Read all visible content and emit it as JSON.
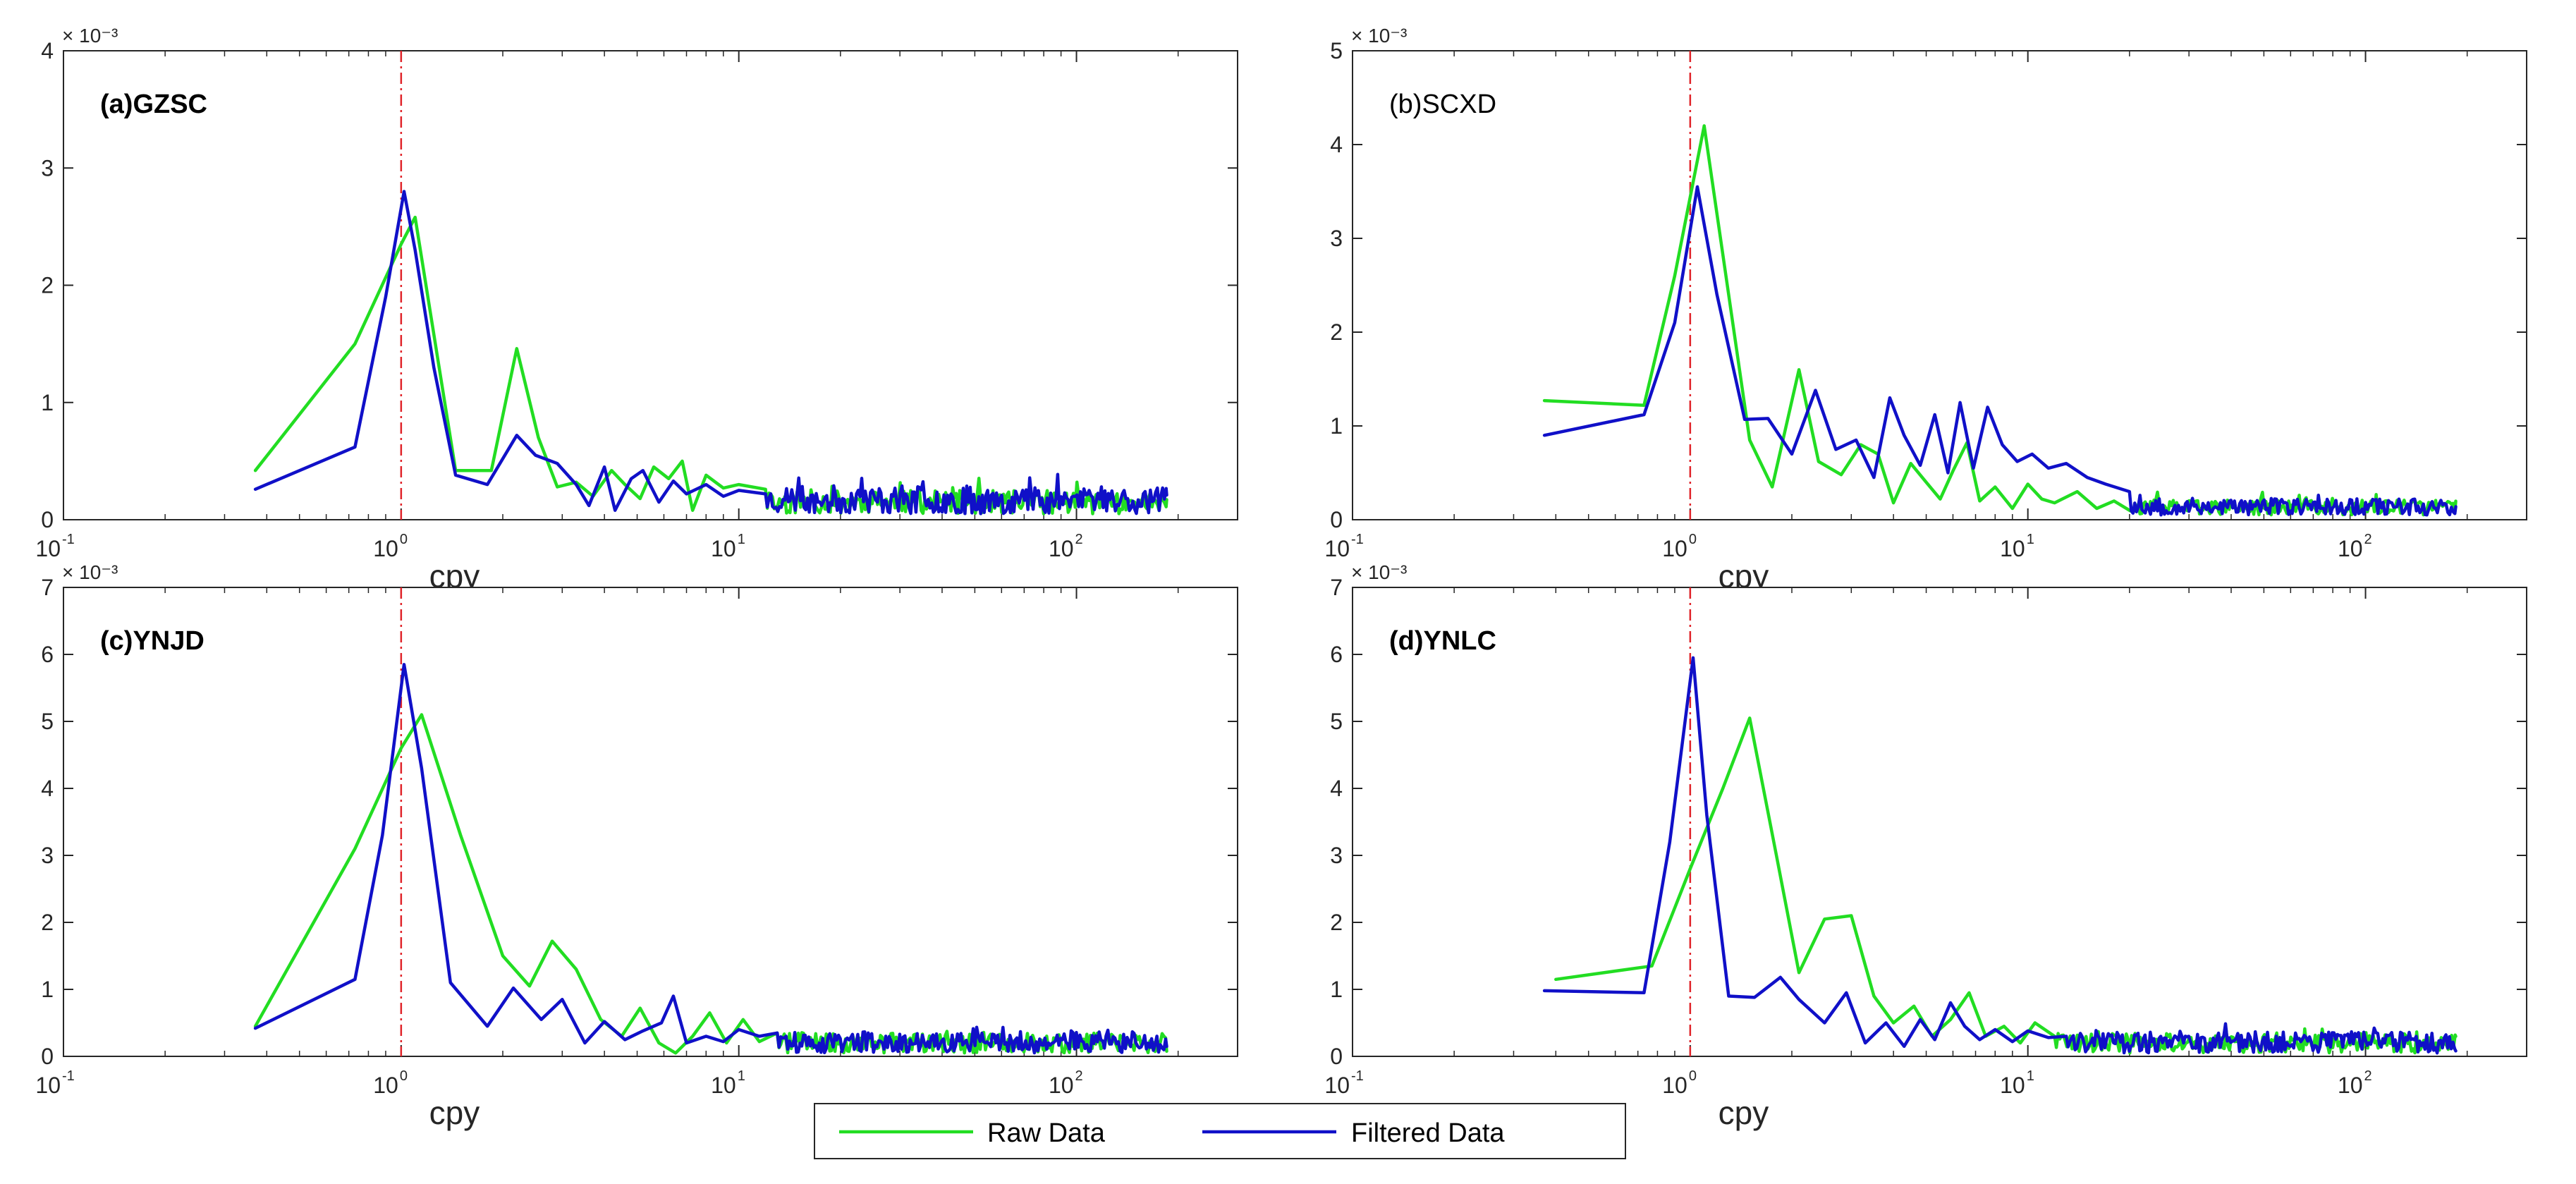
{
  "colors": {
    "raw": "#22dd22",
    "filtered": "#1010c8",
    "reference": "#e0242a"
  },
  "legend": {
    "raw_label": "Raw Data",
    "filtered_label": "Filtered Data"
  },
  "chart_data": [
    {
      "type": "line",
      "title": "(a)GZSC",
      "title_bold": true,
      "xlabel": "cpy",
      "ylabel": "",
      "xscale": "log",
      "xlim": [
        0.1,
        300
      ],
      "ylim": [
        0,
        4
      ],
      "yticks": [
        "0",
        "1",
        "2",
        "3",
        "4"
      ],
      "scale_label": "× 10⁻³",
      "xticks": [
        {
          "base": "10",
          "exp": "-1"
        },
        {
          "base": "10",
          "exp": "0"
        },
        {
          "base": "10",
          "exp": "1"
        },
        {
          "base": "10",
          "exp": "2"
        }
      ],
      "reference_x": 1,
      "grid": false,
      "series": [
        {
          "name": "Raw Data",
          "seed": 11,
          "amp": 0.2,
          "x": [
            0.37,
            0.73,
            1.0,
            1.1,
            1.45,
            1.85,
            2.2,
            2.55,
            2.9,
            3.3,
            3.7,
            4.2,
            4.6,
            5.1,
            5.6,
            6.2,
            6.8,
            7.3,
            8.0,
            9.0,
            10.0,
            12.0
          ],
          "y": [
            0.42,
            1.5,
            2.35,
            2.58,
            0.42,
            0.42,
            1.46,
            0.7,
            0.28,
            0.32,
            0.2,
            0.42,
            0.3,
            0.18,
            0.45,
            0.35,
            0.5,
            0.08,
            0.38,
            0.27,
            0.3,
            0.26
          ]
        },
        {
          "name": "Filtered Data",
          "seed": 23,
          "amp": 0.24,
          "x": [
            0.37,
            0.73,
            0.9,
            1.02,
            1.1,
            1.25,
            1.45,
            1.8,
            2.2,
            2.5,
            2.9,
            3.3,
            3.6,
            4.0,
            4.3,
            4.8,
            5.2,
            5.8,
            6.4,
            7.0,
            8.0,
            9.0,
            10.0,
            12.0
          ],
          "y": [
            0.26,
            0.62,
            1.9,
            2.8,
            2.3,
            1.3,
            0.38,
            0.3,
            0.72,
            0.55,
            0.48,
            0.3,
            0.12,
            0.45,
            0.08,
            0.35,
            0.42,
            0.15,
            0.33,
            0.22,
            0.3,
            0.2,
            0.25,
            0.22
          ]
        }
      ]
    },
    {
      "type": "line",
      "title": "(b)SCXD",
      "title_bold": false,
      "xlabel": "cpy",
      "ylabel": "",
      "xscale": "log",
      "xlim": [
        0.1,
        300
      ],
      "ylim": [
        0,
        5
      ],
      "yticks": [
        "0",
        "1",
        "2",
        "3",
        "4",
        "5"
      ],
      "scale_label": "× 10⁻³",
      "xticks": [
        {
          "base": "10",
          "exp": "-1"
        },
        {
          "base": "10",
          "exp": "0"
        },
        {
          "base": "10",
          "exp": "1"
        },
        {
          "base": "10",
          "exp": "2"
        }
      ],
      "reference_x": 1,
      "grid": false,
      "series": [
        {
          "name": "Raw Data",
          "seed": 37,
          "amp": 0.16,
          "x": [
            0.37,
            0.73,
            0.9,
            1.1,
            1.3,
            1.5,
            1.75,
            2.1,
            2.4,
            2.8,
            3.2,
            3.6,
            4.0,
            4.5,
            5.0,
            5.5,
            6.0,
            6.6,
            7.2,
            8.0,
            9.0,
            10.0,
            11.0,
            12.0,
            14.0,
            16.0,
            18.0,
            20.0
          ],
          "y": [
            1.27,
            1.22,
            2.6,
            4.2,
            2.4,
            0.85,
            0.35,
            1.6,
            0.62,
            0.48,
            0.8,
            0.7,
            0.18,
            0.6,
            0.4,
            0.22,
            0.52,
            0.82,
            0.2,
            0.35,
            0.12,
            0.38,
            0.22,
            0.18,
            0.3,
            0.12,
            0.2,
            0.1
          ]
        },
        {
          "name": "Filtered Data",
          "seed": 53,
          "amp": 0.18,
          "x": [
            0.37,
            0.73,
            0.9,
            1.05,
            1.2,
            1.45,
            1.7,
            2.0,
            2.35,
            2.7,
            3.1,
            3.5,
            3.9,
            4.3,
            4.8,
            5.3,
            5.8,
            6.3,
            6.9,
            7.6,
            8.4,
            9.3,
            10.3,
            11.5,
            13.0,
            15.0,
            17.0,
            20.0
          ],
          "y": [
            0.9,
            1.12,
            2.1,
            3.55,
            2.4,
            1.07,
            1.08,
            0.7,
            1.38,
            0.75,
            0.85,
            0.45,
            1.3,
            0.9,
            0.58,
            1.12,
            0.5,
            1.25,
            0.55,
            1.2,
            0.8,
            0.62,
            0.7,
            0.55,
            0.6,
            0.45,
            0.38,
            0.3
          ]
        }
      ]
    },
    {
      "type": "line",
      "title": "(c)YNJD",
      "title_bold": true,
      "xlabel": "cpy",
      "ylabel": "",
      "xscale": "log",
      "xlim": [
        0.1,
        300
      ],
      "ylim": [
        0,
        7
      ],
      "yticks": [
        "0",
        "1",
        "2",
        "3",
        "4",
        "5",
        "6",
        "7"
      ],
      "scale_label": "× 10⁻³",
      "xticks": [
        {
          "base": "10",
          "exp": "-1"
        },
        {
          "base": "10",
          "exp": "0"
        },
        {
          "base": "10",
          "exp": "1"
        },
        {
          "base": "10",
          "exp": "2"
        }
      ],
      "reference_x": 1,
      "grid": false,
      "series": [
        {
          "name": "Raw Data",
          "seed": 71,
          "amp": 0.3,
          "x": [
            0.37,
            0.73,
            1.0,
            1.15,
            1.5,
            2.0,
            2.4,
            2.8,
            3.3,
            3.9,
            4.5,
            5.1,
            5.8,
            6.5,
            7.3,
            8.2,
            9.2,
            10.3,
            11.5,
            13.0
          ],
          "y": [
            0.45,
            3.1,
            4.6,
            5.1,
            3.3,
            1.5,
            1.05,
            1.72,
            1.3,
            0.55,
            0.3,
            0.72,
            0.2,
            0.05,
            0.3,
            0.65,
            0.2,
            0.55,
            0.22,
            0.35
          ]
        },
        {
          "name": "Filtered Data",
          "seed": 89,
          "amp": 0.32,
          "x": [
            0.37,
            0.73,
            0.88,
            1.02,
            1.15,
            1.4,
            1.8,
            2.15,
            2.6,
            3.0,
            3.5,
            4.0,
            4.6,
            5.2,
            5.9,
            6.4,
            7.0,
            8.0,
            9.0,
            10.0,
            11.5,
            13.0
          ],
          "y": [
            0.42,
            1.15,
            3.3,
            5.85,
            4.3,
            1.1,
            0.45,
            1.02,
            0.55,
            0.85,
            0.2,
            0.52,
            0.25,
            0.38,
            0.5,
            0.9,
            0.2,
            0.3,
            0.22,
            0.4,
            0.3,
            0.35
          ]
        }
      ]
    },
    {
      "type": "line",
      "title": "(d)YNLC",
      "title_bold": true,
      "xlabel": "cpy",
      "ylabel": "",
      "xscale": "log",
      "xlim": [
        0.1,
        300
      ],
      "ylim": [
        0,
        7
      ],
      "yticks": [
        "0",
        "1",
        "2",
        "3",
        "4",
        "5",
        "6",
        "7"
      ],
      "scale_label": "× 10⁻³",
      "xticks": [
        {
          "base": "10",
          "exp": "-1"
        },
        {
          "base": "10",
          "exp": "0"
        },
        {
          "base": "10",
          "exp": "1"
        },
        {
          "base": "10",
          "exp": "2"
        }
      ],
      "reference_x": 1,
      "grid": false,
      "series": [
        {
          "name": "Raw Data",
          "seed": 101,
          "amp": 0.3,
          "x": [
            0.4,
            0.77,
            1.0,
            1.25,
            1.5,
            1.8,
            2.1,
            2.5,
            3.0,
            3.5,
            4.0,
            4.6,
            5.2,
            5.9,
            6.7,
            7.5,
            8.5,
            9.5,
            10.5,
            12.0
          ],
          "y": [
            1.15,
            1.35,
            2.8,
            4.0,
            5.05,
            3.0,
            1.25,
            2.05,
            2.1,
            0.9,
            0.5,
            0.75,
            0.3,
            0.55,
            0.95,
            0.3,
            0.45,
            0.2,
            0.5,
            0.3
          ]
        },
        {
          "name": "Filtered Data",
          "seed": 131,
          "amp": 0.32,
          "x": [
            0.37,
            0.73,
            0.87,
            1.02,
            1.12,
            1.3,
            1.55,
            1.85,
            2.1,
            2.5,
            2.9,
            3.3,
            3.8,
            4.3,
            4.8,
            5.3,
            5.9,
            6.5,
            7.2,
            8.0,
            9.0,
            10.0,
            11.5,
            13.0
          ],
          "y": [
            0.98,
            0.95,
            3.2,
            5.95,
            3.6,
            0.9,
            0.88,
            1.18,
            0.85,
            0.5,
            0.95,
            0.2,
            0.5,
            0.15,
            0.55,
            0.25,
            0.8,
            0.45,
            0.25,
            0.4,
            0.22,
            0.38,
            0.28,
            0.3
          ]
        }
      ]
    }
  ]
}
